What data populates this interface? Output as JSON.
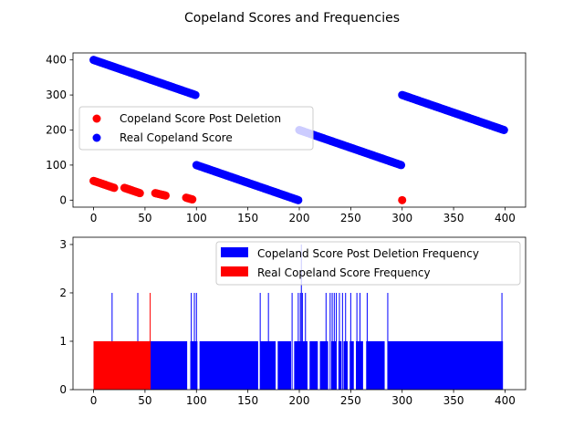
{
  "figure": {
    "suptitle": "Copeland Scores and Frequencies"
  },
  "chart_data": [
    {
      "type": "scatter",
      "xlim": [
        -20,
        420
      ],
      "ylim": [
        -20,
        420
      ],
      "xticks": [
        0,
        50,
        100,
        150,
        200,
        250,
        300,
        350,
        400
      ],
      "yticks": [
        0,
        100,
        200,
        300,
        400
      ],
      "legend_position": "center-left",
      "series": [
        {
          "name": "Copeland Score Post Deletion",
          "color": "#ff0000",
          "runs": [
            {
              "x_start": 0,
              "x_end": 20,
              "y_start": 55,
              "y_end": 35
            },
            {
              "x_start": 30,
              "x_end": 45,
              "y_start": 35,
              "y_end": 20
            },
            {
              "x_start": 60,
              "x_end": 70,
              "y_start": 20,
              "y_end": 13
            },
            {
              "x_start": 90,
              "x_end": 96,
              "y_start": 7,
              "y_end": 2
            }
          ],
          "points": [
            {
              "x": 300,
              "y": 0
            }
          ]
        },
        {
          "name": "Real Copeland Score",
          "color": "#0000ff",
          "runs": [
            {
              "x_start": 0,
              "x_end": 99,
              "y_start": 400,
              "y_end": 300
            },
            {
              "x_start": 100,
              "x_end": 199,
              "y_start": 100,
              "y_end": 0
            },
            {
              "x_start": 200,
              "x_end": 299,
              "y_start": 200,
              "y_end": 100
            },
            {
              "x_start": 300,
              "x_end": 399,
              "y_start": 300,
              "y_end": 200
            }
          ],
          "points": []
        }
      ]
    },
    {
      "type": "bar",
      "xlim": [
        -20,
        420
      ],
      "ylim": [
        0,
        3.15
      ],
      "xticks": [
        0,
        50,
        100,
        150,
        200,
        250,
        300,
        350,
        400
      ],
      "yticks": [
        0,
        1,
        2,
        3
      ],
      "legend_position": "top-right",
      "series": [
        {
          "name": "Copeland Score Post Deletion Frequency",
          "color": "#0000ff",
          "base_range": [
            0,
            398
          ],
          "base_value": 1,
          "zero_gaps": [
            [
              91,
              94
            ],
            [
              101,
              103
            ],
            [
              160,
              162
            ],
            [
              177,
              179
            ],
            [
              192,
              195
            ],
            [
              208,
              210
            ],
            [
              218,
              220
            ],
            [
              228,
              231
            ],
            [
              236,
              238
            ],
            [
              241,
              243
            ],
            [
              247,
              249
            ],
            [
              253,
              255
            ],
            [
              262,
              265
            ],
            [
              283,
              286
            ]
          ],
          "value_two_at": [
            18,
            43,
            95,
            98,
            100,
            162,
            170,
            193,
            199,
            201,
            203,
            206,
            226,
            230,
            232,
            234,
            236,
            239,
            242,
            245,
            250,
            256,
            259,
            266,
            286,
            397
          ],
          "value_three_at": [
            202
          ]
        },
        {
          "name": "Real Copeland Score Frequency",
          "color": "#ff0000",
          "base_range": [
            0,
            55
          ],
          "base_value": 1,
          "value_two_at": [
            55
          ]
        }
      ]
    }
  ]
}
